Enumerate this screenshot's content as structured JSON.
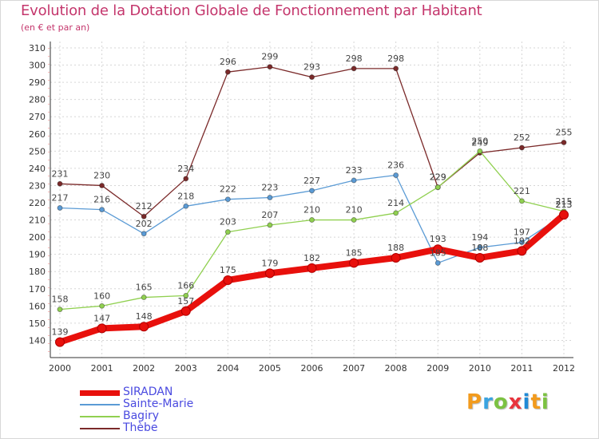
{
  "header": {
    "title": "Evolution de la Dotation Globale de Fonctionnement par Habitant",
    "subtitle": "(en € et par an)"
  },
  "brand": {
    "letters": [
      "P",
      "r",
      "o",
      "x",
      "i",
      "t",
      "i"
    ],
    "colors": [
      "#f29b1d",
      "#3aa3e0",
      "#7cc242",
      "#e8343c",
      "#1f8ad6",
      "#f29b1d",
      "#7cc242"
    ]
  },
  "chart_data": {
    "type": "line",
    "title": "Evolution de la Dotation Globale de Fonctionnement par Habitant",
    "subtitle": "(en € et par an)",
    "xlabel": "",
    "ylabel": "",
    "ylim": [
      130,
      310
    ],
    "yticks": [
      140,
      150,
      160,
      170,
      180,
      190,
      200,
      210,
      220,
      230,
      240,
      250,
      260,
      270,
      280,
      290,
      300,
      310
    ],
    "grid": true,
    "legend_position": "bottom-left",
    "x": [
      "2000",
      "2001",
      "2002",
      "2003",
      "2004",
      "2005",
      "2006",
      "2007",
      "2008",
      "2009",
      "2010",
      "2011",
      "2012"
    ],
    "series": [
      {
        "name": "Thèbe",
        "color": "#7b2a2a",
        "values": [
          231,
          230,
          212,
          234,
          296,
          299,
          293,
          298,
          298,
          229,
          249,
          252,
          255
        ],
        "labels": [
          "231",
          "230",
          "212",
          "234",
          "296",
          "299",
          "293",
          "298",
          "298",
          "229",
          "249",
          "252",
          "255"
        ]
      },
      {
        "name": "Sainte-Marie",
        "color": "#5b9bd5",
        "values": [
          217,
          216,
          202,
          218,
          222,
          223,
          227,
          233,
          236,
          185,
          194,
          197,
          213
        ],
        "labels": [
          "217",
          "216",
          "202",
          "218",
          "222",
          "223",
          "227",
          "233",
          "236",
          "185",
          "194",
          "197",
          "213"
        ]
      },
      {
        "name": "Bagiry",
        "color": "#90d050",
        "values": [
          158,
          160,
          165,
          166,
          203,
          207,
          210,
          210,
          214,
          229,
          250,
          221,
          215
        ],
        "labels": [
          "158",
          "160",
          "165",
          "166",
          "203",
          "207",
          "210",
          "210",
          "214",
          "229",
          "250",
          "221",
          "215"
        ]
      },
      {
        "name": "SIRADAN",
        "color": "#e8100c",
        "values": [
          139,
          147,
          148,
          157,
          175,
          179,
          182,
          185,
          188,
          193,
          188,
          192,
          213
        ],
        "labels": [
          "139",
          "147",
          "148",
          "157",
          "175",
          "179",
          "182",
          "185",
          "188",
          "193",
          "188",
          "192",
          "213"
        ]
      }
    ],
    "legend": [
      {
        "name": "SIRADAN",
        "color": "#e8100c"
      },
      {
        "name": "Sainte-Marie",
        "color": "#5b9bd5"
      },
      {
        "name": "Bagiry",
        "color": "#90d050"
      },
      {
        "name": "Thèbe",
        "color": "#7b2a2a"
      }
    ]
  }
}
